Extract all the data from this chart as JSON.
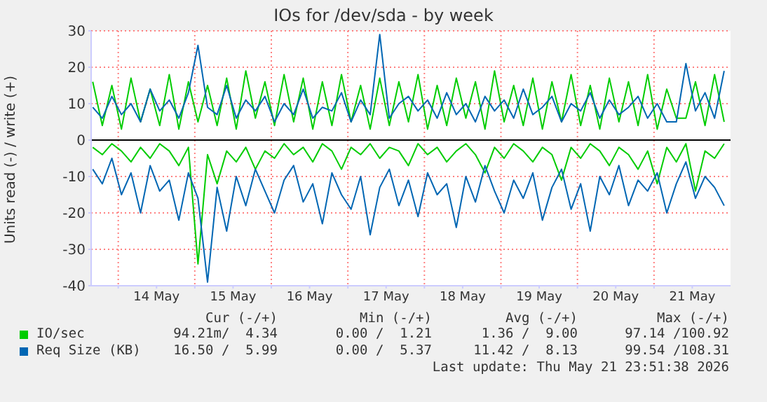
{
  "chart_data": {
    "type": "line",
    "title": "IOs for /dev/sda - by week",
    "ylabel": "Units read (-) / write (+)",
    "x": [
      "2026-05-13T16:00",
      "2026-05-13T19:00",
      "2026-05-13T22:00",
      "2026-05-14T01:00",
      "2026-05-14T04:00",
      "2026-05-14T07:00",
      "2026-05-14T10:00",
      "2026-05-14T13:00",
      "2026-05-14T16:00",
      "2026-05-14T19:00",
      "2026-05-14T22:00",
      "2026-05-15T01:00",
      "2026-05-15T04:00",
      "2026-05-15T07:00",
      "2026-05-15T10:00",
      "2026-05-15T13:00",
      "2026-05-15T16:00",
      "2026-05-15T19:00",
      "2026-05-15T22:00",
      "2026-05-16T01:00",
      "2026-05-16T04:00",
      "2026-05-16T07:00",
      "2026-05-16T10:00",
      "2026-05-16T13:00",
      "2026-05-16T16:00",
      "2026-05-16T19:00",
      "2026-05-16T22:00",
      "2026-05-17T01:00",
      "2026-05-17T04:00",
      "2026-05-17T07:00",
      "2026-05-17T10:00",
      "2026-05-17T13:00",
      "2026-05-17T16:00",
      "2026-05-17T19:00",
      "2026-05-17T22:00",
      "2026-05-18T01:00",
      "2026-05-18T04:00",
      "2026-05-18T07:00",
      "2026-05-18T10:00",
      "2026-05-18T13:00",
      "2026-05-18T16:00",
      "2026-05-18T19:00",
      "2026-05-18T22:00",
      "2026-05-19T01:00",
      "2026-05-19T04:00",
      "2026-05-19T07:00",
      "2026-05-19T10:00",
      "2026-05-19T13:00",
      "2026-05-19T16:00",
      "2026-05-19T19:00",
      "2026-05-19T22:00",
      "2026-05-20T01:00",
      "2026-05-20T04:00",
      "2026-05-20T07:00",
      "2026-05-20T10:00",
      "2026-05-20T13:00",
      "2026-05-20T16:00",
      "2026-05-20T19:00",
      "2026-05-20T22:00",
      "2026-05-21T01:00",
      "2026-05-21T04:00",
      "2026-05-21T07:00",
      "2026-05-21T10:00",
      "2026-05-21T13:00",
      "2026-05-21T16:00",
      "2026-05-21T19:00",
      "2026-05-21T22:00"
    ],
    "series": [
      {
        "name": "IO/sec",
        "color": "#00cc00",
        "values": [
          16,
          4,
          15,
          3,
          17,
          5,
          14,
          4,
          18,
          3,
          16,
          5,
          15,
          4,
          17,
          3,
          19,
          6,
          16,
          4,
          18,
          5,
          17,
          3,
          16,
          4,
          18,
          5,
          15,
          3,
          17,
          4,
          16,
          5,
          18,
          3,
          15,
          4,
          17,
          6,
          16,
          3,
          19,
          5,
          15,
          4,
          17,
          3,
          16,
          5,
          18,
          4,
          15,
          3,
          17,
          5,
          16,
          4,
          18,
          3,
          14,
          6,
          6,
          16,
          4,
          18,
          5
        ]
      },
      {
        "color": "#00cc00",
        "values": [
          -2,
          -4,
          -1,
          -3,
          -6,
          -2,
          -5,
          -1,
          -3,
          -7,
          -2,
          -34,
          -4,
          -12,
          -3,
          -6,
          -2,
          -8,
          -3,
          -5,
          -1,
          -4,
          -2,
          -6,
          -1,
          -3,
          -8,
          -2,
          -4,
          -1,
          -5,
          -2,
          -3,
          -7,
          -1,
          -4,
          -2,
          -6,
          -3,
          -1,
          -4,
          -9,
          -2,
          -5,
          -1,
          -3,
          -6,
          -2,
          -4,
          -11,
          -2,
          -5,
          -1,
          -3,
          -7,
          -2,
          -4,
          -8,
          -3,
          -12,
          -2,
          -6,
          -1,
          -14,
          -3,
          -5,
          -1
        ]
      },
      {
        "name": "Req Size (KB)",
        "color": "#0066b3",
        "values": [
          9,
          6,
          12,
          7,
          10,
          5,
          14,
          8,
          11,
          6,
          13,
          26,
          9,
          7,
          15,
          6,
          11,
          8,
          12,
          5,
          10,
          7,
          14,
          6,
          9,
          8,
          13,
          5,
          11,
          7,
          29,
          6,
          10,
          12,
          8,
          11,
          6,
          13,
          7,
          10,
          5,
          12,
          8,
          11,
          6,
          14,
          7,
          9,
          12,
          5,
          10,
          8,
          13,
          6,
          11,
          7,
          9,
          12,
          6,
          10,
          5,
          5,
          21,
          8,
          13,
          6,
          19
        ]
      },
      {
        "color": "#0066b3",
        "values": [
          -8,
          -12,
          -5,
          -15,
          -9,
          -20,
          -7,
          -14,
          -11,
          -22,
          -9,
          -16,
          -39,
          -13,
          -25,
          -10,
          -18,
          -8,
          -14,
          -20,
          -11,
          -7,
          -17,
          -12,
          -23,
          -9,
          -15,
          -19,
          -10,
          -26,
          -13,
          -8,
          -18,
          -11,
          -21,
          -9,
          -15,
          -12,
          -24,
          -10,
          -17,
          -7,
          -14,
          -20,
          -11,
          -16,
          -9,
          -22,
          -13,
          -8,
          -19,
          -12,
          -25,
          -10,
          -15,
          -7,
          -18,
          -11,
          -14,
          -9,
          -20,
          -12,
          -6,
          -16,
          -10,
          -13,
          -18
        ]
      }
    ],
    "xlim": [
      "2026-05-13T15:30",
      "2026-05-22T00:00"
    ],
    "xticks": [
      {
        "value": "2026-05-14",
        "label": null
      },
      {
        "value": "2026-05-14T12:00",
        "label": "14 May"
      },
      {
        "value": "2026-05-15",
        "label": null
      },
      {
        "value": "2026-05-15T12:00",
        "label": "15 May"
      },
      {
        "value": "2026-05-16",
        "label": null
      },
      {
        "value": "2026-05-16T12:00",
        "label": "16 May"
      },
      {
        "value": "2026-05-17",
        "label": null
      },
      {
        "value": "2026-05-17T12:00",
        "label": "17 May"
      },
      {
        "value": "2026-05-18",
        "label": null
      },
      {
        "value": "2026-05-18T12:00",
        "label": "18 May"
      },
      {
        "value": "2026-05-19",
        "label": null
      },
      {
        "value": "2026-05-19T12:00",
        "label": "19 May"
      },
      {
        "value": "2026-05-20",
        "label": null
      },
      {
        "value": "2026-05-20T12:00",
        "label": "20 May"
      },
      {
        "value": "2026-05-21",
        "label": null
      },
      {
        "value": "2026-05-21T12:00",
        "label": "21 May"
      }
    ],
    "ylim": [
      -40,
      30
    ],
    "yticks": [
      -40,
      -30,
      -20,
      -10,
      0,
      10,
      20,
      30
    ],
    "grid": true,
    "legend": "bottom",
    "ref_lines": [
      {
        "axis": "y",
        "value": 0,
        "color": "#000000"
      }
    ],
    "annotations": [
      "Cur (-/+)",
      "Min (-/+)",
      "Avg (-/+)",
      "Max (-/+)",
      "94.21m/  4.34",
      "0.00 /  1.21",
      "1.36 /  9.00",
      "97.14 /100.92",
      "16.50 /  5.99",
      "0.00 /  5.37",
      "11.42 /  8.13",
      "99.54 /108.31",
      "Last update: Thu May 21 23:51:38 2026"
    ]
  }
}
